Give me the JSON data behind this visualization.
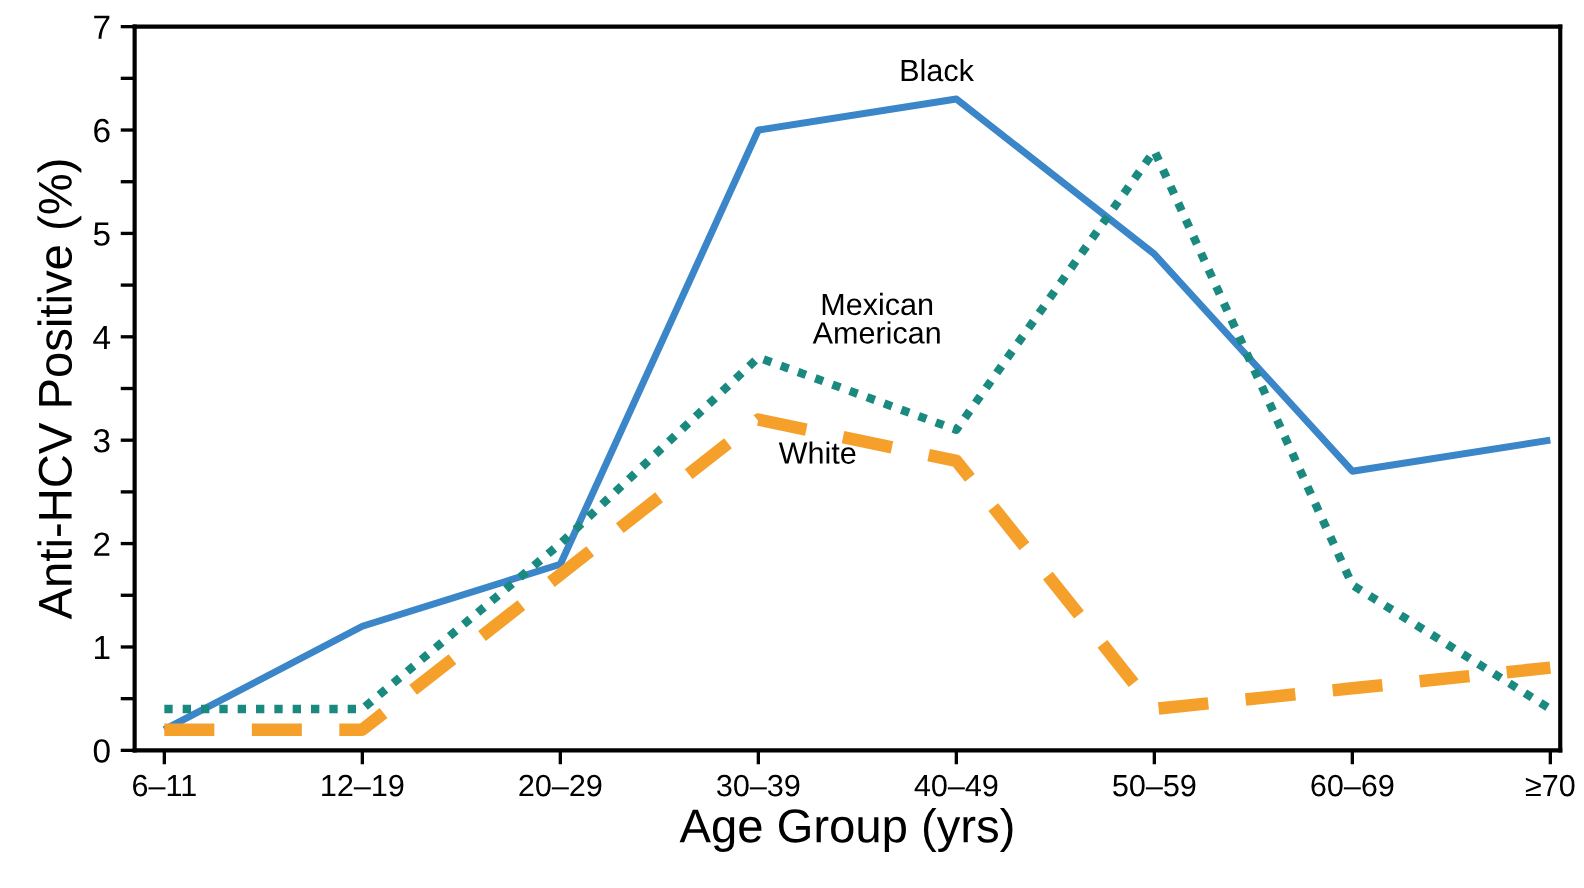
{
  "chart_data": {
    "type": "line",
    "xlabel": "Age Group (yrs)",
    "ylabel": "Anti-HCV Positive (%)",
    "categories": [
      "6–11",
      "12–19",
      "20–29",
      "30–39",
      "40–49",
      "50–59",
      "60–69",
      "≥70"
    ],
    "ylim": [
      0,
      7
    ],
    "yticks": [
      0,
      {
        "value": 0.5,
        "label": null
      },
      1,
      {
        "value": 1.5,
        "label": null
      },
      2,
      {
        "value": 2.5,
        "label": null
      },
      3,
      {
        "value": 3.5,
        "label": null
      },
      4,
      {
        "value": 4.5,
        "label": null
      },
      5,
      {
        "value": 5.5,
        "label": null
      },
      6,
      {
        "value": 6.5,
        "label": null
      },
      7
    ],
    "grid": false,
    "legend": false,
    "series": [
      {
        "name": "Black",
        "color": "#3a86c8",
        "line_style": "solid",
        "values": [
          0.2,
          1.2,
          1.8,
          6.0,
          6.3,
          4.8,
          2.7,
          3.0
        ]
      },
      {
        "name": "Mexican\nAmerican",
        "color": "#1a8a80",
        "line_style": "dotted",
        "values": [
          0.4,
          0.4,
          2.0,
          3.8,
          3.1,
          5.8,
          1.6,
          0.4
        ]
      },
      {
        "name": "White",
        "color": "#f5a02a",
        "line_style": "dashed",
        "values": [
          0.2,
          0.2,
          1.7,
          3.2,
          2.8,
          0.4,
          0.6,
          0.8
        ]
      }
    ]
  }
}
